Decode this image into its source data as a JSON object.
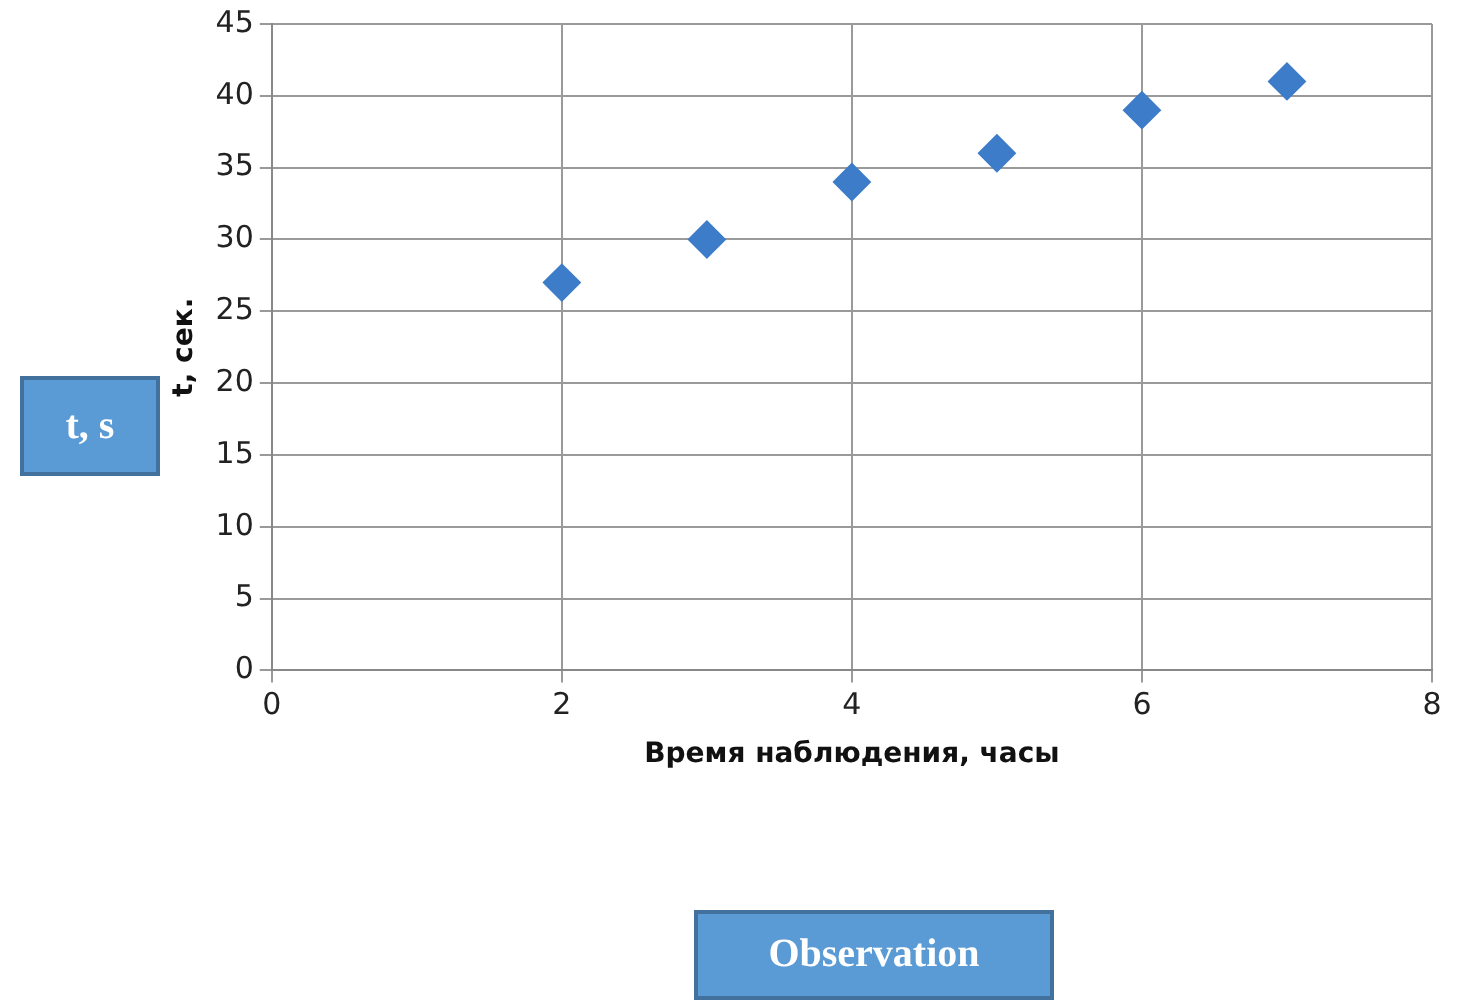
{
  "chart_data": {
    "type": "scatter",
    "xlabel": "Время наблюдения, часы",
    "ylabel": "t, сек.",
    "x": [
      2,
      3,
      4,
      5,
      6,
      7
    ],
    "series": [
      {
        "color": "#3d7cc9",
        "values": [
          27,
          30,
          34,
          36,
          39,
          41
        ]
      }
    ],
    "xlim": [
      0,
      8
    ],
    "xticks": [
      0,
      2,
      4,
      6,
      8
    ],
    "ylim": [
      0,
      45
    ],
    "yticks": [
      0,
      5,
      10,
      15,
      20,
      25,
      30,
      35,
      40,
      45
    ],
    "grid": true,
    "legend": false,
    "marker": "diamond",
    "annotations": [
      "t, s",
      "Observation"
    ]
  }
}
